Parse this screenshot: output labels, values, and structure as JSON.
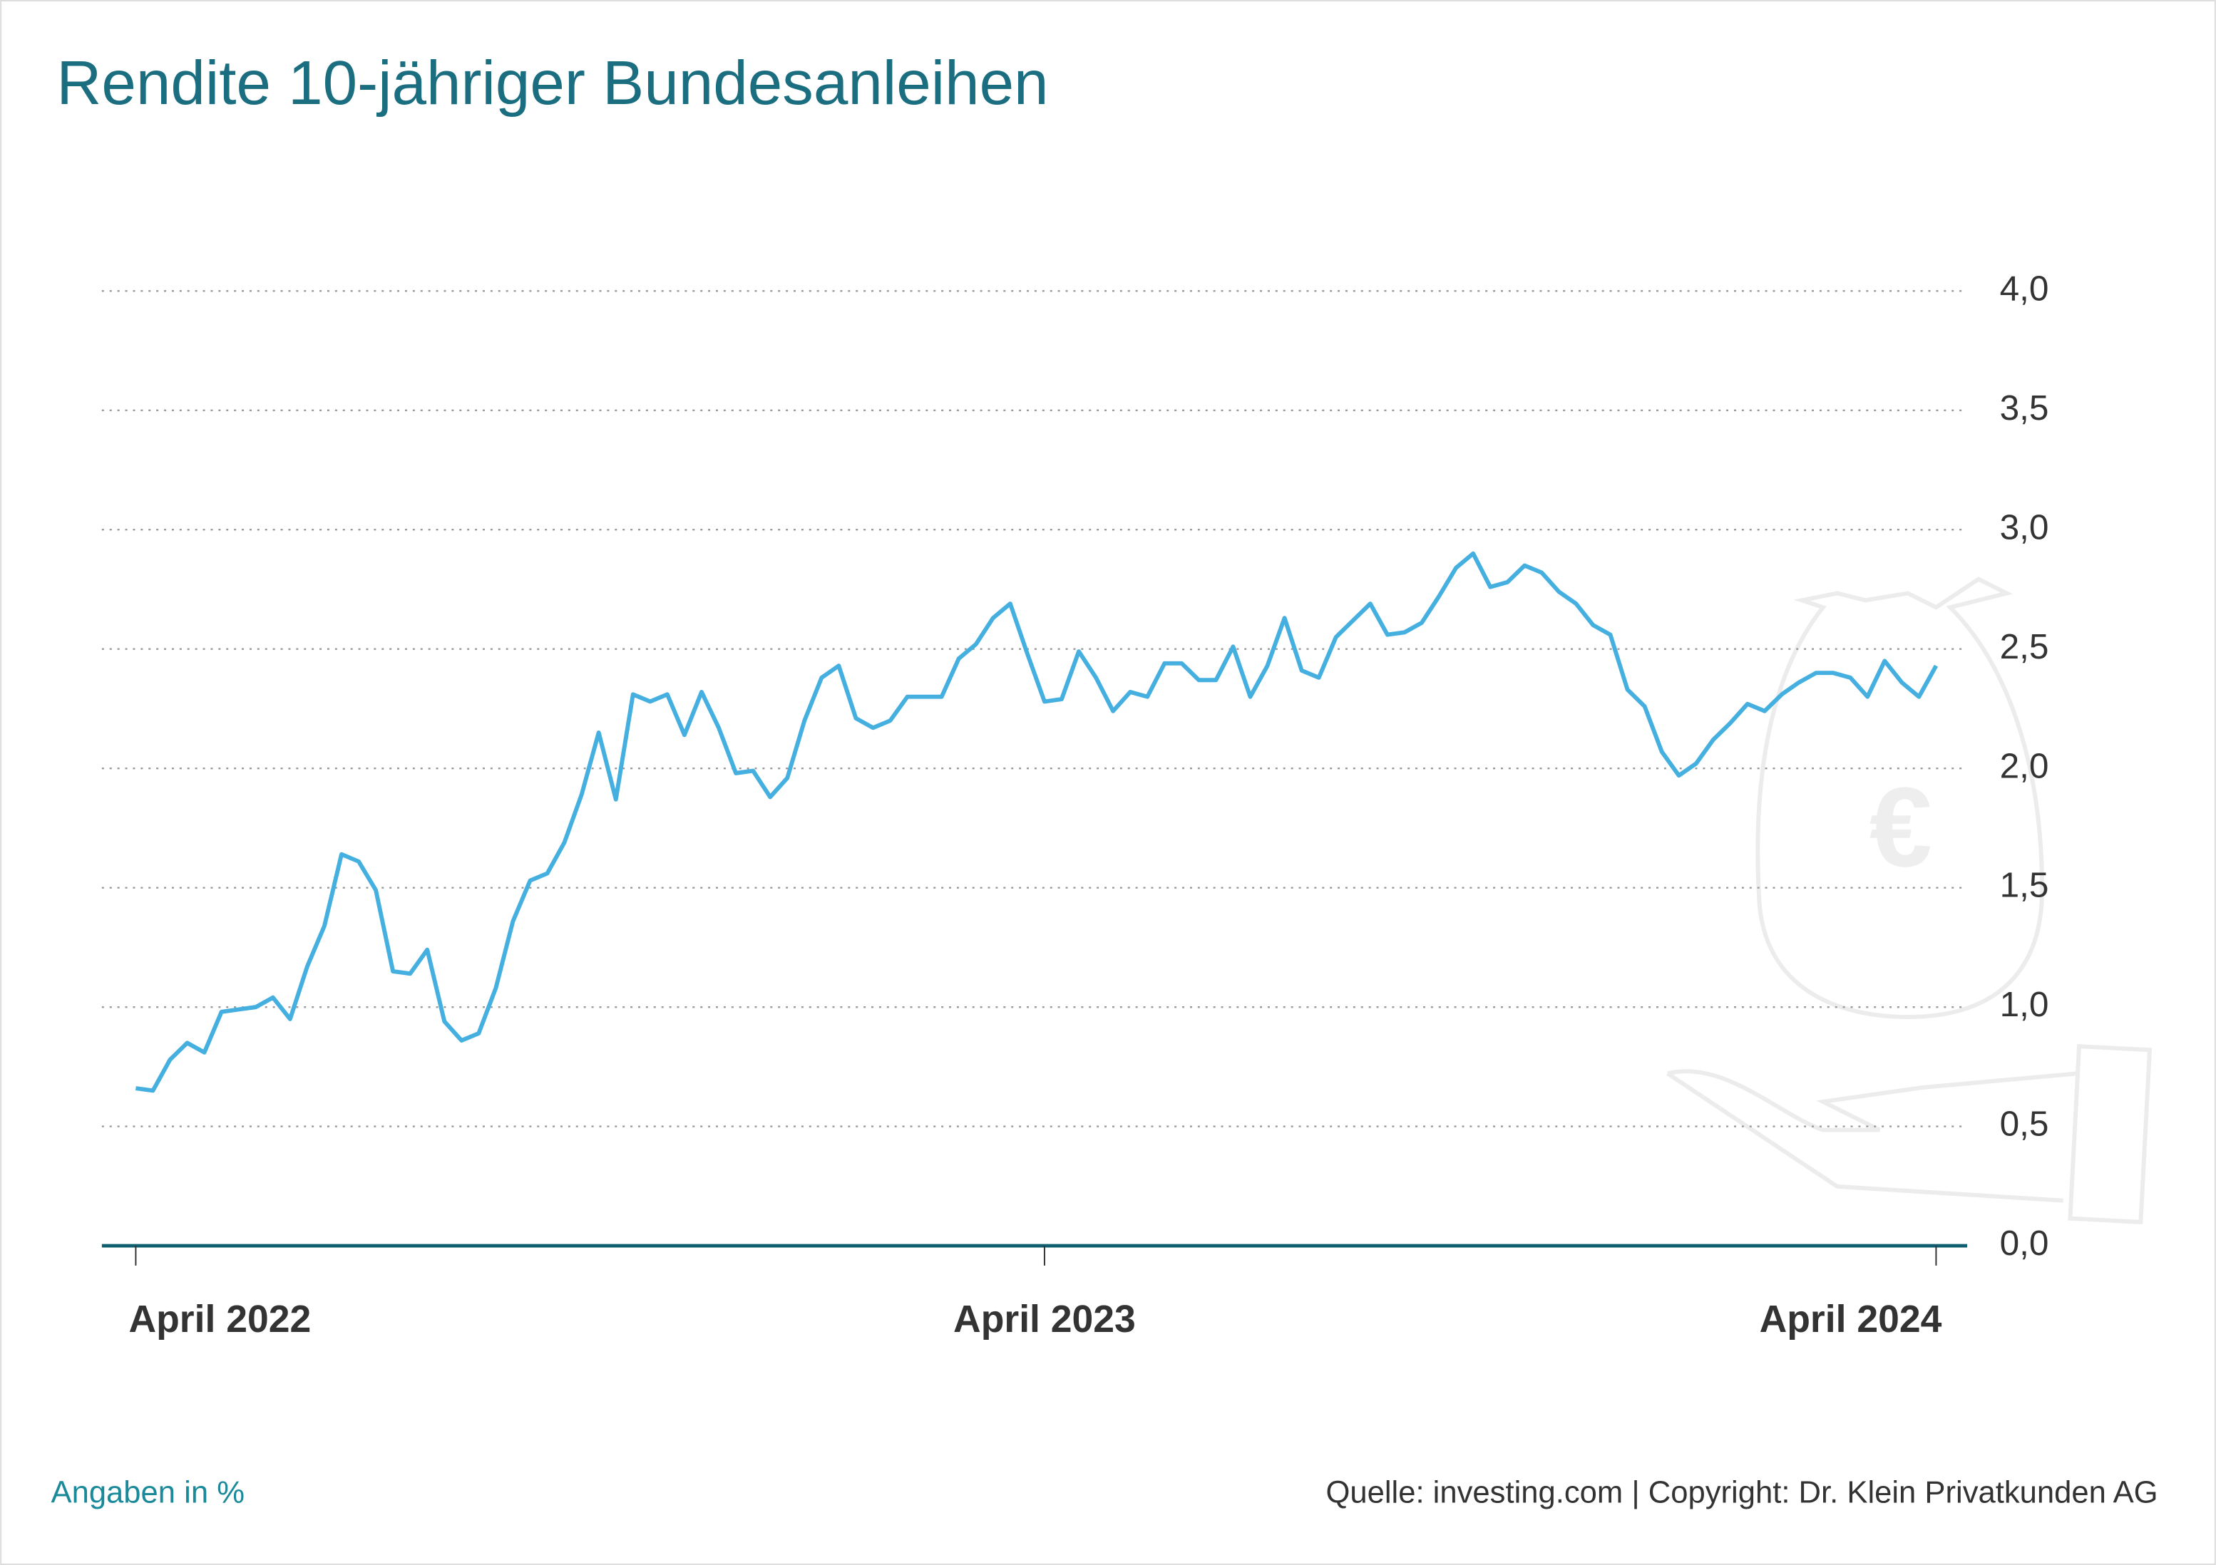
{
  "chart_data": {
    "type": "line",
    "title": "Rendite 10-jähriger Bundesanleihen",
    "note": "Angaben in %",
    "source": "Quelle: investing.com | Copyright: Dr. Klein Privatkunden AG",
    "categories": [
      "April 2022",
      null,
      null,
      null,
      null,
      null,
      null,
      null,
      null,
      null,
      null,
      null,
      null,
      null,
      null,
      null,
      null,
      null,
      null,
      null,
      null,
      null,
      null,
      null,
      null,
      null,
      null,
      null,
      null,
      null,
      null,
      null,
      null,
      null,
      null,
      null,
      null,
      null,
      null,
      null,
      null,
      null,
      null,
      null,
      null,
      null,
      null,
      null,
      null,
      null,
      null,
      null,
      null,
      "April 2023",
      null,
      null,
      null,
      null,
      null,
      null,
      null,
      null,
      null,
      null,
      null,
      null,
      null,
      null,
      null,
      null,
      null,
      null,
      null,
      null,
      null,
      null,
      null,
      null,
      null,
      null,
      null,
      null,
      null,
      null,
      null,
      null,
      null,
      null,
      null,
      null,
      null,
      null,
      null,
      null,
      null,
      null,
      null,
      null,
      null,
      null,
      null,
      null,
      null,
      null,
      null,
      "April 2024"
    ],
    "series": [
      {
        "name": "Rendite",
        "color": "#45b0e0",
        "values": [
          0.66,
          0.65,
          0.78,
          0.85,
          0.81,
          0.98,
          0.99,
          1.0,
          1.04,
          0.95,
          1.17,
          1.34,
          1.64,
          1.61,
          1.49,
          1.15,
          1.14,
          1.24,
          0.94,
          0.86,
          0.89,
          1.08,
          1.36,
          1.53,
          1.56,
          1.69,
          1.89,
          2.15,
          1.87,
          2.31,
          2.28,
          2.31,
          2.14,
          2.32,
          2.17,
          1.98,
          1.99,
          1.88,
          1.96,
          2.2,
          2.38,
          2.43,
          2.21,
          2.17,
          2.2,
          2.3,
          2.3,
          2.3,
          2.46,
          2.52,
          2.63,
          2.69,
          2.48,
          2.28,
          2.29,
          2.49,
          2.38,
          2.24,
          2.32,
          2.3,
          2.44,
          2.44,
          2.37,
          2.37,
          2.51,
          2.3,
          2.43,
          2.63,
          2.41,
          2.38,
          2.55,
          2.62,
          2.69,
          2.56,
          2.57,
          2.61,
          2.72,
          2.84,
          2.9,
          2.76,
          2.78,
          2.85,
          2.82,
          2.74,
          2.69,
          2.6,
          2.56,
          2.33,
          2.26,
          2.07,
          1.97,
          2.02,
          2.12,
          2.19,
          2.27,
          2.24,
          2.31,
          2.36,
          2.4,
          2.4,
          2.38,
          2.3,
          2.45,
          2.36,
          2.3,
          2.43
        ]
      }
    ],
    "ylim": [
      0,
      4
    ],
    "yticks": [
      {
        "value": 0,
        "label": "0,0"
      },
      {
        "value": 0.5,
        "label": "0,5"
      },
      {
        "value": 1,
        "label": "1,0"
      },
      {
        "value": 1.5,
        "label": "1,5"
      },
      {
        "value": 2,
        "label": "2,0"
      },
      {
        "value": 2.5,
        "label": "2,5"
      },
      {
        "value": 3,
        "label": "3,0"
      },
      {
        "value": 3.5,
        "label": "3,5"
      },
      {
        "value": 4,
        "label": "4,0"
      }
    ],
    "grid": true
  }
}
